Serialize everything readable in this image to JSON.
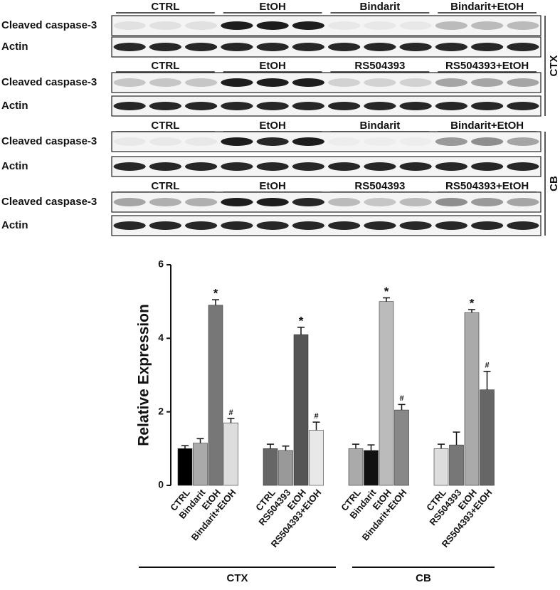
{
  "blots": [
    {
      "tissue": "CTX",
      "panels": [
        {
          "headers": [
            "CTRL",
            "EtOH",
            "Bindarit",
            "Bindarit+EtOH"
          ],
          "rows": [
            "Cleaved caspase-3",
            "Actin"
          ]
        },
        {
          "headers": [
            "CTRL",
            "EtOH",
            "RS504393",
            "RS504393+EtOH"
          ],
          "rows": [
            "Cleaved caspase-3",
            "Actin"
          ]
        }
      ]
    },
    {
      "tissue": "CB",
      "panels": [
        {
          "headers": [
            "CTRL",
            "EtOH",
            "Bindarit",
            "Bindarit+EtOH"
          ],
          "rows": [
            "Cleaved caspase-3",
            "Actin"
          ]
        },
        {
          "headers": [
            "CTRL",
            "EtOH",
            "RS504393",
            "RS504393+EtOH"
          ],
          "rows": [
            "Cleaved caspase-3",
            "Actin"
          ]
        }
      ]
    }
  ],
  "chart_data": {
    "type": "bar",
    "y_label": "Relative Expression",
    "categories": [
      "CTRL",
      "Bindarit",
      "EtOH",
      "Bindarit+EtOH",
      "CTRL",
      "RS504393",
      "EtOH",
      "RS504393+EtOH",
      "CTRL",
      "Bindarit",
      "EtOH",
      "Bindarit+EtOH",
      "CTRL",
      "RS504393",
      "EtOH",
      "RS504393+EtOH"
    ],
    "values": [
      1.0,
      1.15,
      4.9,
      1.7,
      1.0,
      0.95,
      4.1,
      1.5,
      1.0,
      0.95,
      5.0,
      2.05,
      1.0,
      1.1,
      4.7,
      2.6
    ],
    "errors": [
      0.08,
      0.12,
      0.15,
      0.12,
      0.12,
      0.12,
      0.2,
      0.22,
      0.12,
      0.15,
      0.1,
      0.15,
      0.12,
      0.35,
      0.08,
      0.5
    ],
    "colors": [
      "#000000",
      "#aaaaaa",
      "#777777",
      "#dddddd",
      "#666666",
      "#999999",
      "#555555",
      "#e8e8e8",
      "#aaaaaa",
      "#111111",
      "#bbbbbb",
      "#888888",
      "#dddddd",
      "#777777",
      "#aaaaaa",
      "#666666"
    ],
    "bar_labels": [
      null,
      null,
      "*",
      "#",
      null,
      null,
      "*",
      "#",
      null,
      null,
      "*",
      "#",
      null,
      null,
      "*",
      "#"
    ],
    "groups": [
      {
        "label": "CTX"
      },
      {
        "label": "CB"
      }
    ],
    "ylim": [
      0,
      6
    ],
    "yticks": [
      0,
      2,
      4,
      6
    ]
  }
}
